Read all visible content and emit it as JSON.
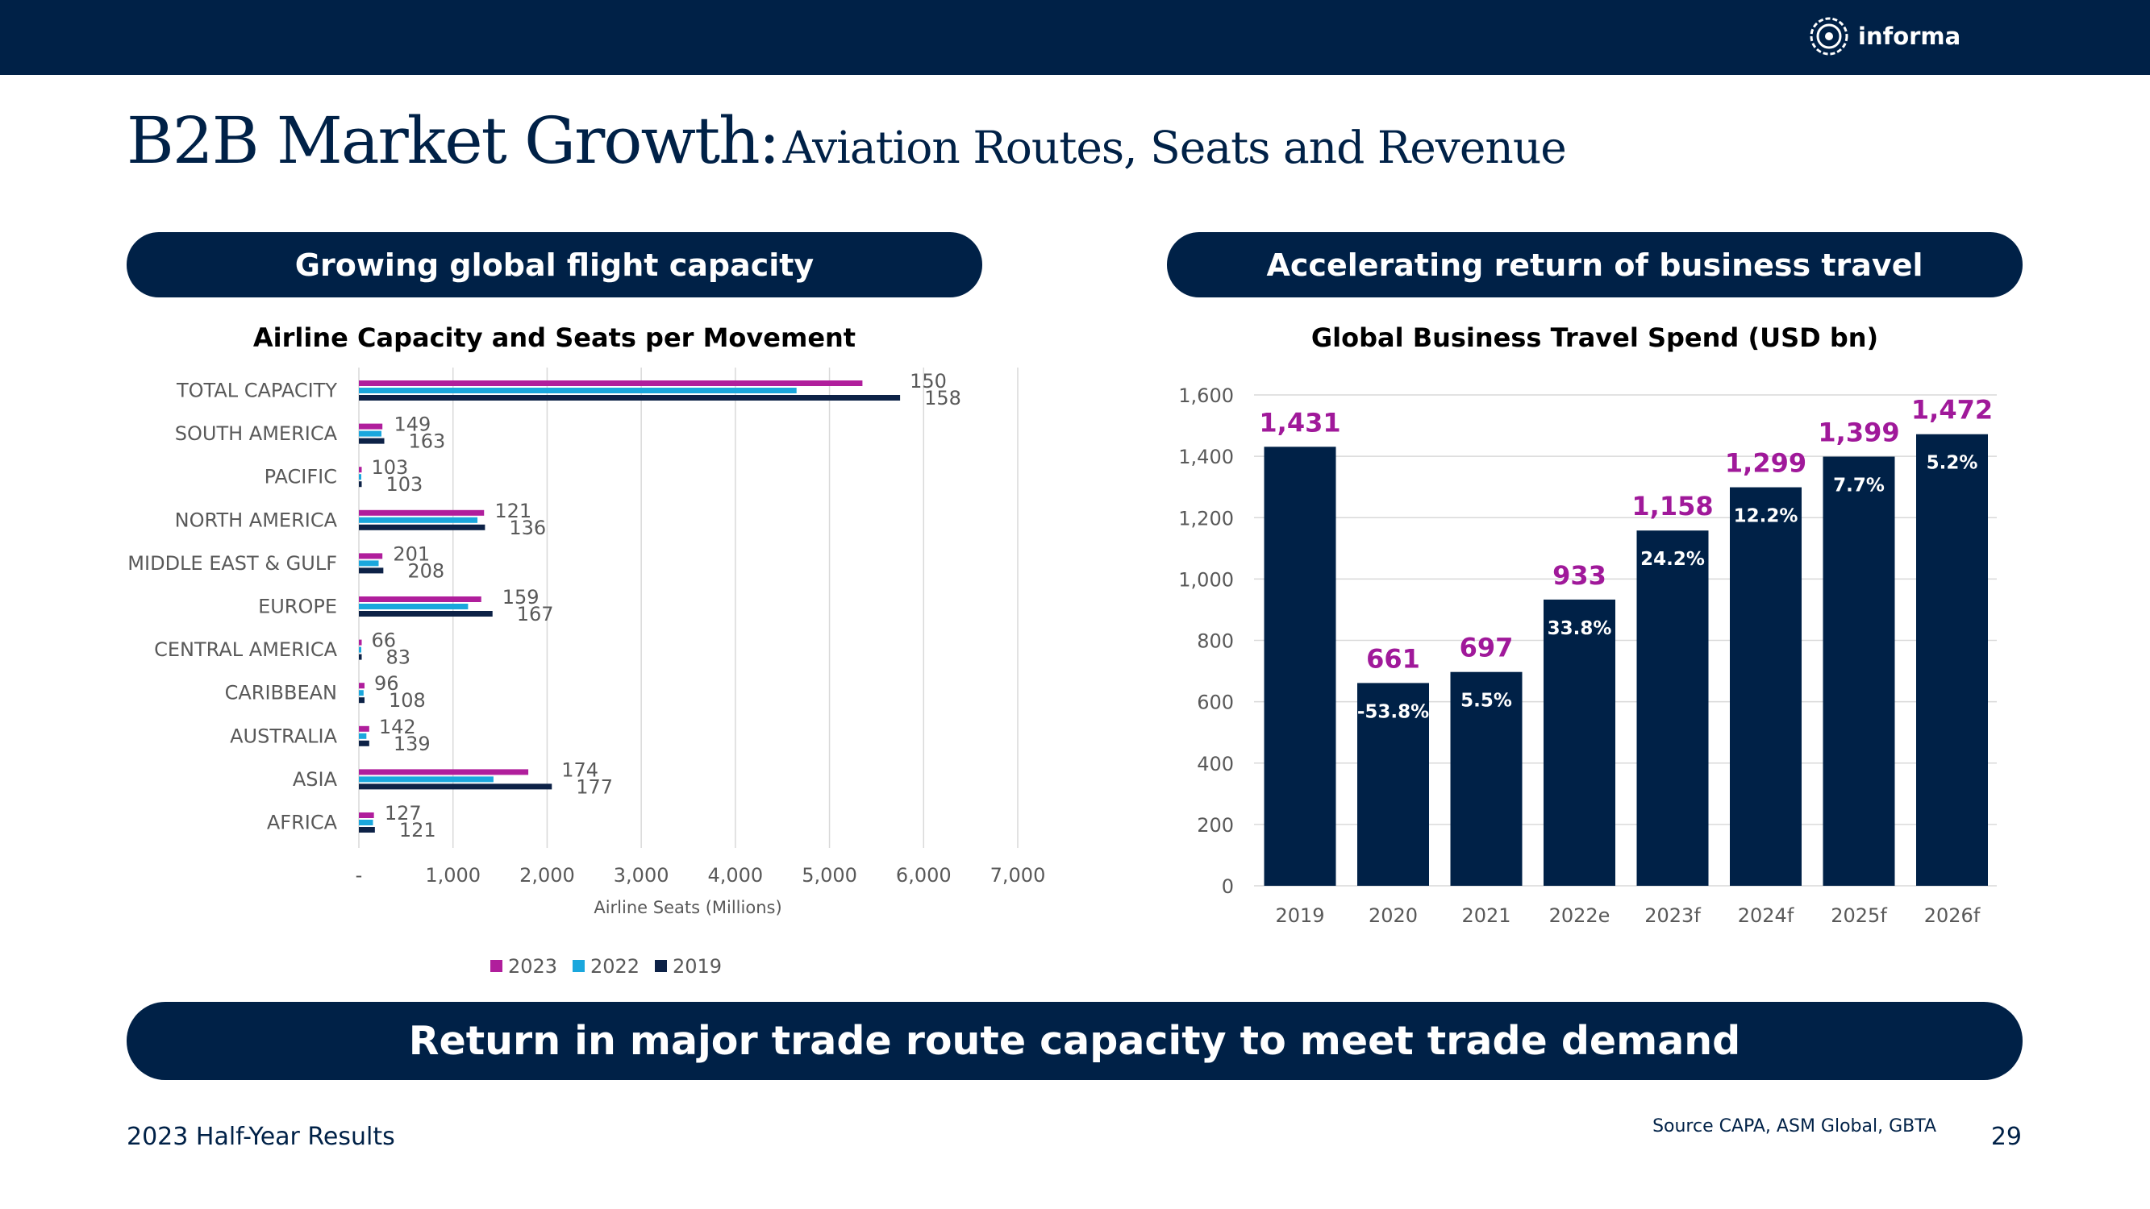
{
  "header": {
    "brand": "informa",
    "logo_icon": "informa-logo-icon"
  },
  "title": {
    "main": "B2B Market Growth:",
    "sub": "Aviation Routes, Seats and Revenue"
  },
  "left_panel": {
    "pill": "Growing global flight capacity",
    "chart_title": "Airline Capacity and Seats per Movement"
  },
  "right_panel": {
    "pill": "Accelerating return of business travel",
    "chart_title": "Global Business Travel Spend (USD bn)"
  },
  "bottom_pill": "Return in major trade route capacity to meet trade demand",
  "footer": {
    "left": "2023 Half-Year Results",
    "source": "Source CAPA, ASM Global, GBTA",
    "page": "29"
  },
  "colors": {
    "navy": "#002147",
    "magenta": "#B01E9C",
    "cyan": "#1AA7DD",
    "dark": "#0D2247",
    "label_magenta": "#A0199A"
  },
  "chart_data": [
    {
      "type": "bar",
      "orientation": "horizontal",
      "title": "Airline Capacity and Seats per Movement",
      "xlabel": "Airline Seats (Millions)",
      "xlim": [
        0,
        7000
      ],
      "x_ticks": [
        "-",
        "1,000",
        "2,000",
        "3,000",
        "4,000",
        "5,000",
        "6,000",
        "7,000"
      ],
      "grid": "vertical",
      "legend_position": "bottom",
      "categories": [
        "TOTAL CAPACITY",
        "SOUTH AMERICA",
        "PACIFIC",
        "NORTH AMERICA",
        "MIDDLE EAST & GULF",
        "EUROPE",
        "CENTRAL AMERICA",
        "CARIBBEAN",
        "AUSTRALIA",
        "ASIA",
        "AFRICA"
      ],
      "series": [
        {
          "name": "2023",
          "color": "#B01E9C",
          "values": [
            5350,
            250,
            30,
            1330,
            250,
            1300,
            30,
            60,
            110,
            1800,
            160
          ]
        },
        {
          "name": "2022",
          "color": "#1AA7DD",
          "values": [
            4650,
            240,
            25,
            1260,
            210,
            1160,
            25,
            50,
            80,
            1430,
            150
          ]
        },
        {
          "name": "2019",
          "color": "#0D2247",
          "values": [
            5750,
            270,
            30,
            1340,
            260,
            1420,
            30,
            60,
            110,
            2050,
            170
          ]
        }
      ],
      "seats_per_movement": [
        {
          "a": "150",
          "b": "158"
        },
        {
          "a": "149",
          "b": "163"
        },
        {
          "a": "103",
          "b": "103"
        },
        {
          "a": "121",
          "b": "136"
        },
        {
          "a": "201",
          "b": "208"
        },
        {
          "a": "159",
          "b": "167"
        },
        {
          "a": "66",
          "b": "83"
        },
        {
          "a": "96",
          "b": "108"
        },
        {
          "a": "142",
          "b": "139"
        },
        {
          "a": "174",
          "b": "177"
        },
        {
          "a": "127",
          "b": "121"
        }
      ]
    },
    {
      "type": "bar",
      "title": "Global Business Travel Spend (USD bn)",
      "ylim": [
        0,
        1600
      ],
      "y_ticks": [
        "0",
        "200",
        "400",
        "600",
        "800",
        "1,000",
        "1,200",
        "1,400",
        "1,600"
      ],
      "grid": "horizontal",
      "categories": [
        "2019",
        "2020",
        "2021",
        "2022e",
        "2023f",
        "2024f",
        "2025f",
        "2026f"
      ],
      "values": [
        1431,
        661,
        697,
        933,
        1158,
        1299,
        1399,
        1472
      ],
      "value_labels": [
        "1,431",
        "661",
        "697",
        "933",
        "1,158",
        "1,299",
        "1,399",
        "1,472"
      ],
      "growth_labels": [
        "",
        "-53.8%",
        "5.5%",
        "33.8%",
        "24.2%",
        "12.2%",
        "7.7%",
        "5.2%"
      ]
    }
  ]
}
